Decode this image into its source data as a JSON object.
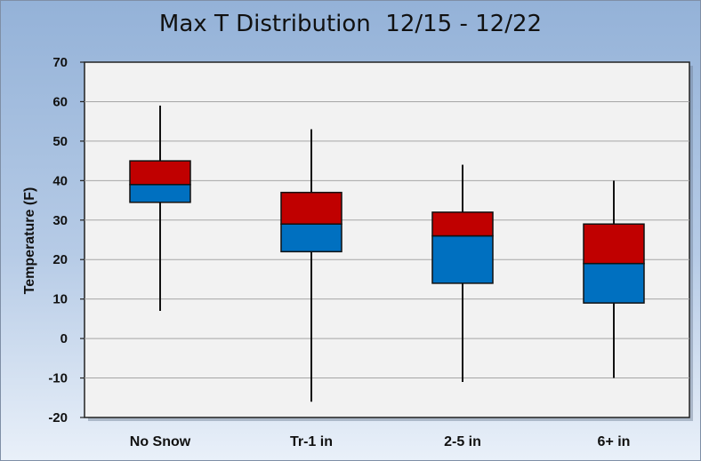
{
  "chart_data": {
    "type": "box",
    "title": "Max T Distribution  12/15 - 12/22",
    "xlabel": "",
    "ylabel": "Temperature (F)",
    "ylim": [
      -20,
      70
    ],
    "yticks": [
      -20,
      -10,
      0,
      10,
      20,
      30,
      40,
      50,
      60,
      70
    ],
    "grid": true,
    "categories": [
      "No Snow",
      "Tr-1 in",
      "2-5 in",
      "6+ in"
    ],
    "boxes": [
      {
        "min": 7,
        "q1": 34.5,
        "median": 39,
        "q3": 45,
        "max": 59
      },
      {
        "min": -16,
        "q1": 22,
        "median": 29,
        "q3": 37,
        "max": 53
      },
      {
        "min": -11,
        "q1": 14,
        "median": 26,
        "q3": 32,
        "max": 44
      },
      {
        "min": -10,
        "q1": 9,
        "median": 19,
        "q3": 29,
        "max": 40
      }
    ],
    "colors": {
      "lower_box": "#0070c0",
      "upper_box": "#c00000",
      "plot_bg": "#f2f2f2",
      "grid": "#a6a6a6"
    }
  }
}
